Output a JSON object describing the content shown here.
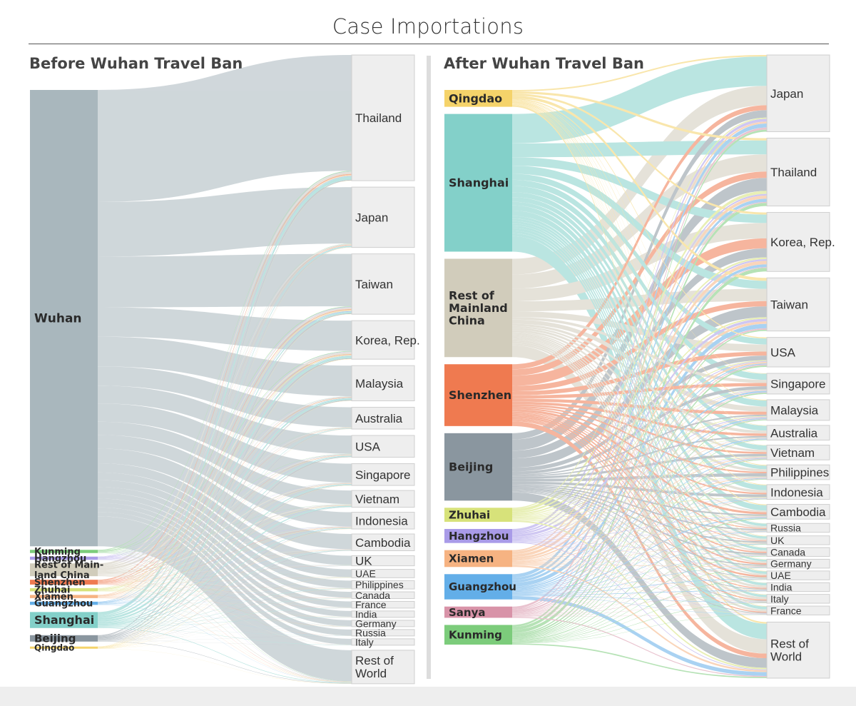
{
  "title": "Case Importations",
  "chart_data": [
    {
      "type": "sankey",
      "title": "Before Wuhan Travel Ban",
      "sources": [
        {
          "name": "Wuhan",
          "color": "#a9b7bd",
          "value": 285
        },
        {
          "name": "Kunming",
          "color": "#7ccc7b",
          "value": 2
        },
        {
          "name": "Hangzhou",
          "color": "#a99be8",
          "value": 2
        },
        {
          "name": "Rest of Main-land China",
          "color": "#d1ccbb",
          "value": 8
        },
        {
          "name": "Shenzhen",
          "color": "#ef7a50",
          "value": 3
        },
        {
          "name": "Zhuhai",
          "color": "#d7e27a",
          "value": 2
        },
        {
          "name": "Xiamen",
          "color": "#f6b382",
          "value": 2
        },
        {
          "name": "Guangzhou",
          "color": "#63aee8",
          "value": 2
        },
        {
          "name": "Shanghai",
          "color": "#83d0c9",
          "value": 10
        },
        {
          "name": "Beijing",
          "color": "#8a969f",
          "value": 4
        },
        {
          "name": "Qingdao",
          "color": "#f5d36a",
          "value": 1
        }
      ],
      "destinations": [
        {
          "name": "Thailand",
          "value": 75
        },
        {
          "name": "Japan",
          "value": 36
        },
        {
          "name": "Taiwan",
          "value": 36
        },
        {
          "name": "Korea, Rep.",
          "value": 23
        },
        {
          "name": "Malaysia",
          "value": 21
        },
        {
          "name": "Australia",
          "value": 13
        },
        {
          "name": "USA",
          "value": 13
        },
        {
          "name": "Singapore",
          "value": 13
        },
        {
          "name": "Vietnam",
          "value": 10
        },
        {
          "name": "Indonesia",
          "value": 10
        },
        {
          "name": "Cambodia",
          "value": 10
        },
        {
          "name": "UK",
          "value": 6
        },
        {
          "name": "UAE",
          "value": 5
        },
        {
          "name": "Philippines",
          "value": 5
        },
        {
          "name": "Canada",
          "value": 4
        },
        {
          "name": "France",
          "value": 4
        },
        {
          "name": "India",
          "value": 3
        },
        {
          "name": "Germany",
          "value": 3
        },
        {
          "name": "Russia",
          "value": 3
        },
        {
          "name": "Italy",
          "value": 3
        },
        {
          "name": "Rest of World",
          "value": 20
        }
      ]
    },
    {
      "type": "sankey",
      "title": "After Wuhan Travel Ban",
      "sources": [
        {
          "name": "Qingdao",
          "color": "#f5d36a",
          "value": 6
        },
        {
          "name": "Shanghai",
          "color": "#83d0c9",
          "value": 49
        },
        {
          "name": "Rest of Mainland China",
          "color": "#d1ccbb",
          "value": 35
        },
        {
          "name": "Shenzhen",
          "color": "#ef7a50",
          "value": 22
        },
        {
          "name": "Beijing",
          "color": "#8a969f",
          "value": 24
        },
        {
          "name": "Zhuhai",
          "color": "#d7e27a",
          "value": 5
        },
        {
          "name": "Hangzhou",
          "color": "#a99be8",
          "value": 5
        },
        {
          "name": "Xiamen",
          "color": "#f6b382",
          "value": 6
        },
        {
          "name": "Guangzhou",
          "color": "#63aee8",
          "value": 9
        },
        {
          "name": "Sanya",
          "color": "#d893a8",
          "value": 4
        },
        {
          "name": "Kunming",
          "color": "#7ccc7b",
          "value": 7
        }
      ],
      "destinations": [
        {
          "name": "Japan",
          "value": 26
        },
        {
          "name": "Thailand",
          "value": 23
        },
        {
          "name": "Korea, Rep.",
          "value": 20
        },
        {
          "name": "Taiwan",
          "value": 18
        },
        {
          "name": "USA",
          "value": 10
        },
        {
          "name": "Singapore",
          "value": 7
        },
        {
          "name": "Malaysia",
          "value": 7
        },
        {
          "name": "Australia",
          "value": 5
        },
        {
          "name": "Vietnam",
          "value": 5
        },
        {
          "name": "Philippines",
          "value": 5
        },
        {
          "name": "Indonesia",
          "value": 5
        },
        {
          "name": "Cambodia",
          "value": 5
        },
        {
          "name": "Russia",
          "value": 3
        },
        {
          "name": "UK",
          "value": 3
        },
        {
          "name": "Canada",
          "value": 3
        },
        {
          "name": "Germany",
          "value": 3
        },
        {
          "name": "UAE",
          "value": 3
        },
        {
          "name": "India",
          "value": 3
        },
        {
          "name": "Italy",
          "value": 3
        },
        {
          "name": "France",
          "value": 3
        },
        {
          "name": "Rest of World",
          "value": 19
        }
      ]
    }
  ]
}
